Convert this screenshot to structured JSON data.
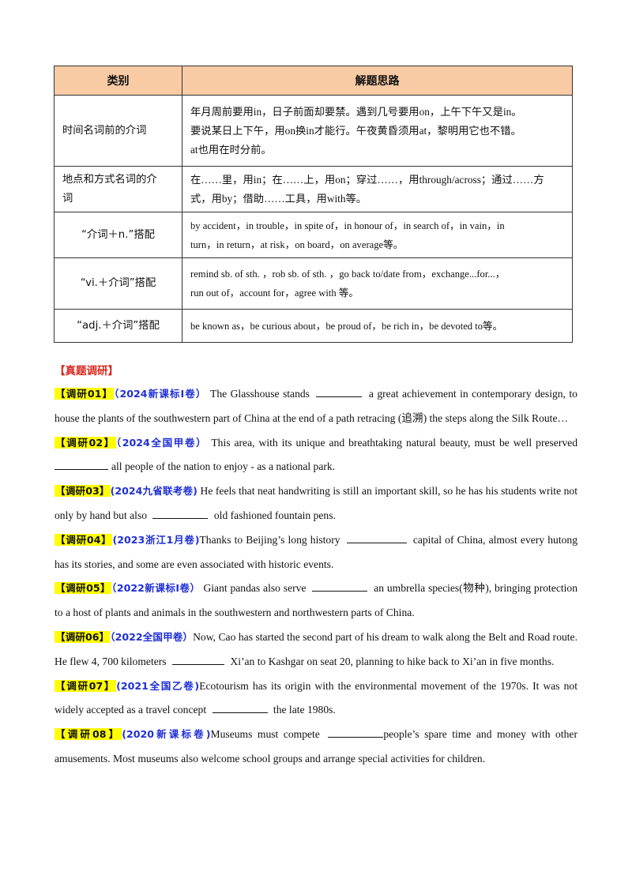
{
  "table": {
    "headers": [
      "类别",
      "解题思路"
    ],
    "rows": [
      {
        "category": "时间名词前的介词",
        "tips": [
          "年月周前要用in，日子前面却要禁。遇到几号要用on，上午下午又是in。",
          "要说某日上下午，用on换in才能行。午夜黄昏须用at，黎明用它也不错。",
          "at也用在时分前。"
        ]
      },
      {
        "category": [
          "地点和方式名词的介",
          "词"
        ],
        "tips": [
          "在……里，用in；在……上，用on；穿过……，用through/across；通过……方",
          "式，用by；借助……工具，用with等。"
        ]
      },
      {
        "category": "“介词＋n.”搭配",
        "tips": [
          "by accident，in trouble，in spite of，in honour of，in search of，in vain，in",
          "turn，in return，at risk，on board，on average等。"
        ]
      },
      {
        "category": "“vi.＋介词”搭配",
        "tips": [
          "remind sb. of sth. ，rob sb. of sth. ，go back to/date from，exchange...for...，",
          "run out of，account for，agree with 等。"
        ]
      },
      {
        "category": "“adj.＋介词”搭配",
        "tips": [
          "be known as，be curious about，be proud of，be rich in，be devoted to等。"
        ]
      }
    ]
  },
  "section_title": "【真题调研】",
  "items": [
    {
      "tag": "【调研01】",
      "source": "（2024新课标I卷）",
      "before": "The Glasshouse stands",
      "after": "a great achievement in contemporary design, to house the plants of the southwestern part of China at the end of a path retracing (追溯) the steps along the Silk Route…"
    },
    {
      "tag": "【调研02】",
      "source": "（2024全国甲卷）",
      "before": "This area, with its unique and breathtaking natural beauty, must be well preserved",
      "after": "all people of the nation to enjoy - as a national park."
    },
    {
      "tag": "【调研03】",
      "source": "(2024九省联考卷)",
      "before": "He feels that neat handwriting is still an important skill, so he has his students write not only by hand but also",
      "after": "old fashioned fountain pens."
    },
    {
      "tag": "【调研04】",
      "source": "(2023浙江1月卷)",
      "before": "Thanks to Beijing’s long history",
      "after": "capital of China, almost every hutong has its stories, and some are even associated with historic events."
    },
    {
      "tag": "【调研05】",
      "source": "（2022新课标I卷）",
      "before": "Giant pandas also serve",
      "after": "an umbrella species(物种), bringing protection to a host of plants and animals in the southwestern and northwestern parts of China."
    },
    {
      "tag": "【调研06】",
      "source": "（2022全国甲卷）",
      "before": "Now, Cao has started the second part of his dream to walk along the Belt and Road route. He flew 4, 700 kilometers",
      "after": "Xi’an to Kashgar on seat 20, planning to hike back to Xi’an in five months."
    },
    {
      "tag": "【调研07】",
      "source": "(2021全国乙卷)",
      "before": "Ecotourism has its origin with the environmental movement of the 1970s. It was not widely accepted as a travel concept",
      "after": "the late 1980s."
    },
    {
      "tag": "【调研08】",
      "source": "(2020新课标卷)",
      "before": "Museums must compete",
      "after": "people’s spare time and money with other amusements. Most museums also welcome school groups and arrange special activities for children."
    }
  ]
}
